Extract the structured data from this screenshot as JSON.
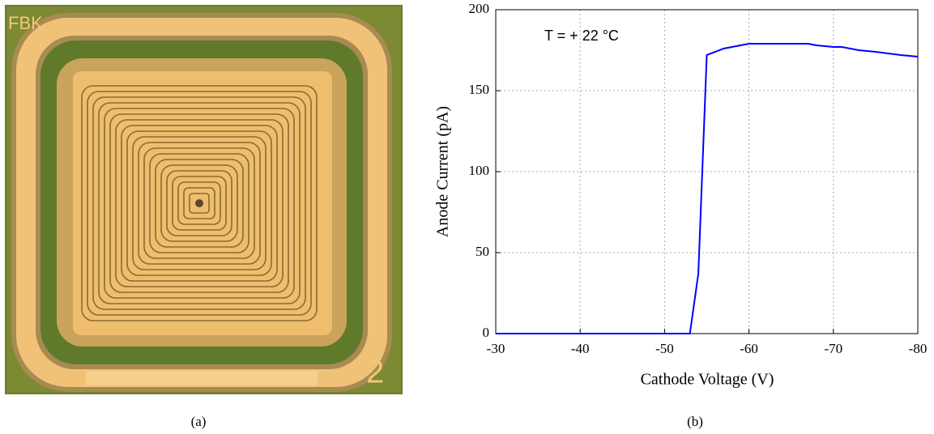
{
  "photo": {
    "labels": [
      "FBK",
      "2"
    ]
  },
  "captions": [
    "(a)",
    "(b)"
  ],
  "chart_data": {
    "type": "line",
    "xlabel": "Cathode Voltage (V)",
    "ylabel": "Anode Current  (pA)",
    "annotation": "T = + 22 °C",
    "x": [
      -30,
      -53,
      -54,
      -55,
      -57,
      -60,
      -67,
      -68,
      -70,
      -71,
      -73,
      -75,
      -78,
      -80
    ],
    "series": [
      {
        "color": "#0000ff",
        "values": [
          0,
          0,
          37,
          172,
          176,
          179,
          179,
          178,
          177,
          177,
          175,
          174,
          172,
          171
        ]
      }
    ],
    "xlim": [
      -30,
      -80
    ],
    "xticks": [
      -30,
      -40,
      -50,
      -60,
      -70,
      -80
    ],
    "ylim": [
      0,
      200
    ],
    "yticks": [
      0,
      50,
      100,
      150,
      200
    ],
    "grid": true
  }
}
